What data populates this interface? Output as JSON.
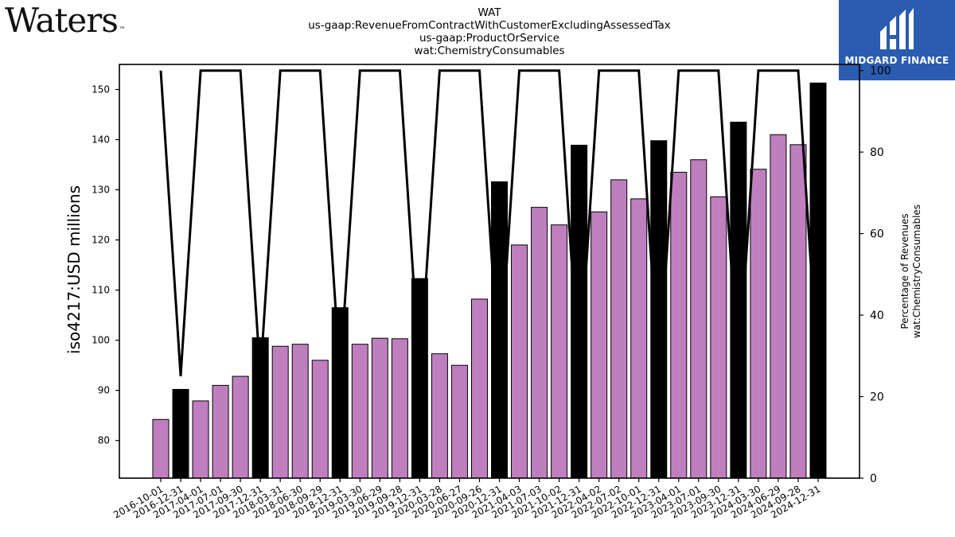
{
  "header": {
    "logo_text": "Waters",
    "logo_mark": "™",
    "title_lines": [
      "WAT",
      "us-gaap:RevenueFromContractWithCustomerExcludingAssessedTax",
      "us-gaap:ProductOrService",
      "wat:ChemistryConsumables"
    ]
  },
  "badge": {
    "text": "MIDGARD FINANCE",
    "color": "#2a5cb0"
  },
  "chart_data": {
    "type": "bar",
    "ylabel": "iso4217:USD  millions",
    "y2label": [
      "Percentage of Revenues",
      "wat:ChemistryConsumables"
    ],
    "ylim": [
      72.5,
      155
    ],
    "y2lim": [
      0,
      101.5
    ],
    "yticks": [
      80,
      90,
      100,
      110,
      120,
      130,
      140,
      150
    ],
    "y2ticks": [
      0,
      20,
      40,
      60,
      80,
      100
    ],
    "grid": false,
    "categories": [
      "2016-10-01",
      "2016-12-31",
      "2017-04-01",
      "2017-07-01",
      "2017-09-30",
      "2017-12-31",
      "2018-03-31",
      "2018-06-30",
      "2018-09-29",
      "2018-12-31",
      "2019-03-30",
      "2019-06-29",
      "2019-09-28",
      "2019-12-31",
      "2020-03-28",
      "2020-06-27",
      "2020-09-26",
      "2020-12-31",
      "2021-04-03",
      "2021-07-03",
      "2021-10-02",
      "2021-12-31",
      "2022-04-02",
      "2022-07-02",
      "2022-10-01",
      "2022-12-31",
      "2023-04-01",
      "2023-07-01",
      "2023-09-30",
      "2023-12-31",
      "2024-03-30",
      "2024-06-29",
      "2024-09-28",
      "2024-12-31"
    ],
    "values": [
      84.2,
      90.2,
      87.9,
      91.0,
      92.8,
      100.5,
      98.8,
      99.2,
      96.0,
      106.5,
      99.2,
      100.4,
      100.3,
      112.3,
      97.3,
      95.0,
      108.2,
      131.6,
      119.0,
      126.5,
      123.0,
      138.9,
      125.6,
      132.0,
      128.2,
      139.8,
      133.5,
      136.0,
      128.6,
      143.5,
      134.1,
      141.0,
      139.0,
      151.3
    ],
    "bar_colors": [
      "#bf7fbf",
      "#000000",
      "#bf7fbf",
      "#bf7fbf",
      "#bf7fbf",
      "#000000",
      "#bf7fbf",
      "#bf7fbf",
      "#bf7fbf",
      "#000000",
      "#bf7fbf",
      "#bf7fbf",
      "#bf7fbf",
      "#000000",
      "#bf7fbf",
      "#bf7fbf",
      "#bf7fbf",
      "#000000",
      "#bf7fbf",
      "#bf7fbf",
      "#bf7fbf",
      "#000000",
      "#bf7fbf",
      "#bf7fbf",
      "#bf7fbf",
      "#000000",
      "#bf7fbf",
      "#bf7fbf",
      "#bf7fbf",
      "#000000",
      "#bf7fbf",
      "#bf7fbf",
      "#bf7fbf",
      "#000000"
    ],
    "line_series": {
      "axis": "right",
      "color": "#000000",
      "values": [
        100,
        25,
        100,
        100,
        100,
        25,
        100,
        100,
        100,
        25,
        100,
        100,
        100,
        25,
        100,
        100,
        100,
        25,
        100,
        100,
        100,
        25,
        100,
        100,
        100,
        25,
        100,
        100,
        100,
        25,
        100,
        100,
        100,
        25
      ]
    }
  }
}
